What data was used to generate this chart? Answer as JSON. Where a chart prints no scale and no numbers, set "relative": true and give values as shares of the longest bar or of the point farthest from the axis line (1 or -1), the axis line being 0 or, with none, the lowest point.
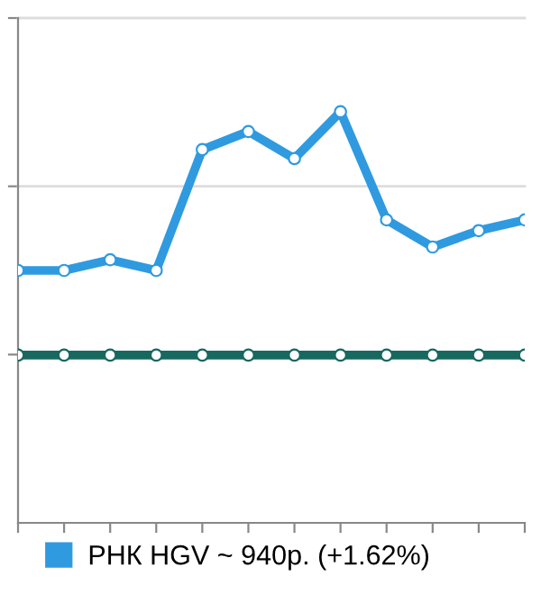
{
  "chart_data": {
    "type": "line",
    "relative": true,
    "categories": [
      null,
      null,
      null,
      null,
      null,
      null,
      null,
      null,
      null,
      null,
      null,
      null
    ],
    "series": [
      {
        "name": "РНК HGV ~ 940р. (+1.62%)",
        "color": "#2f9ae0",
        "values": [
          0.614,
          0.614,
          0.64,
          0.614,
          0.908,
          0.952,
          0.886,
          1.0,
          0.737,
          0.671,
          0.711,
          0.737
        ]
      },
      {
        "color": "#17695f",
        "values": [
          0.408,
          0.408,
          0.408,
          0.408,
          0.408,
          0.408,
          0.408,
          0.408,
          0.408,
          0.408,
          0.408,
          0.408
        ]
      }
    ],
    "ref_lines": [
      {
        "axis": "y",
        "value": 0.819,
        "color": "#dddddd"
      },
      {
        "axis": "y",
        "value": 1.228,
        "color": "#dddddd"
      }
    ],
    "marker": "circle",
    "legend": "bottom"
  }
}
